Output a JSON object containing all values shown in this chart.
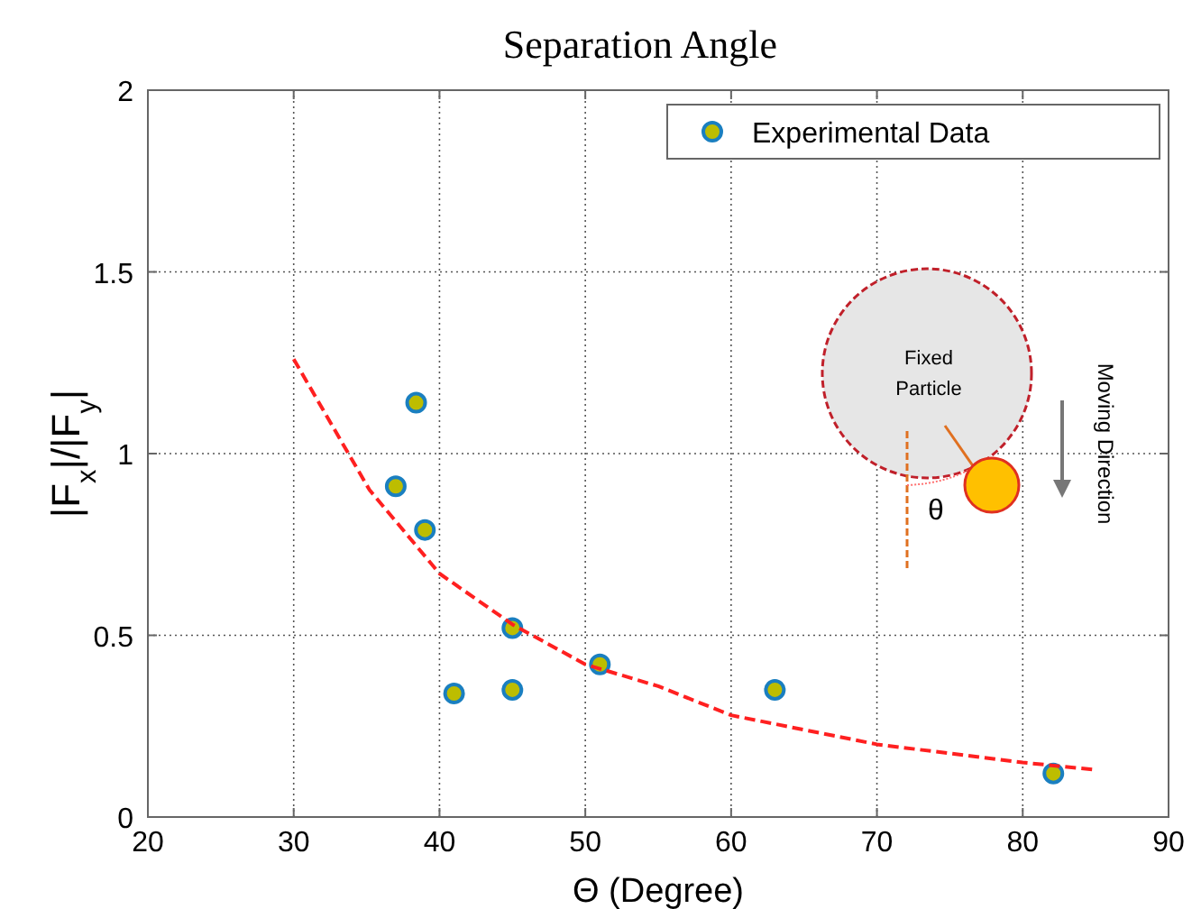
{
  "chart_data": {
    "type": "scatter",
    "title": "Separation Angle",
    "xlabel": "Θ (Degree)",
    "ylabel": "|F$_{x}$|/|F$_{y}$|",
    "xlim": [
      20,
      90
    ],
    "xticks": [
      20,
      30,
      40,
      50,
      60,
      70,
      80,
      90
    ],
    "ylim": [
      0,
      2
    ],
    "yticks": [
      0,
      0.5,
      1,
      1.5,
      2
    ],
    "grid": true,
    "legend": "top right",
    "marker": "circle",
    "series": [
      {
        "name": "Experimental Data",
        "color": "#bdbd00",
        "x": [
          37.0,
          38.4,
          39.0,
          41.0,
          45.0,
          45.0,
          51.0,
          63.0,
          82.1
        ],
        "values": [
          0.91,
          1.14,
          0.79,
          0.34,
          0.35,
          0.52,
          0.42,
          0.35,
          0.12
        ]
      },
      {
        "type": "line",
        "color": "#ff2020",
        "line_style": "dashed",
        "marker": "none",
        "x": [
          30,
          35.2,
          40,
          45,
          50,
          55,
          60,
          70,
          80,
          85
        ],
        "values": [
          1.26,
          0.9,
          0.67,
          0.53,
          0.42,
          0.36,
          0.28,
          0.2,
          0.15,
          0.13
        ]
      }
    ],
    "annotations": [
      "Fixed Particle",
      "θ",
      "Moving Direction"
    ]
  }
}
